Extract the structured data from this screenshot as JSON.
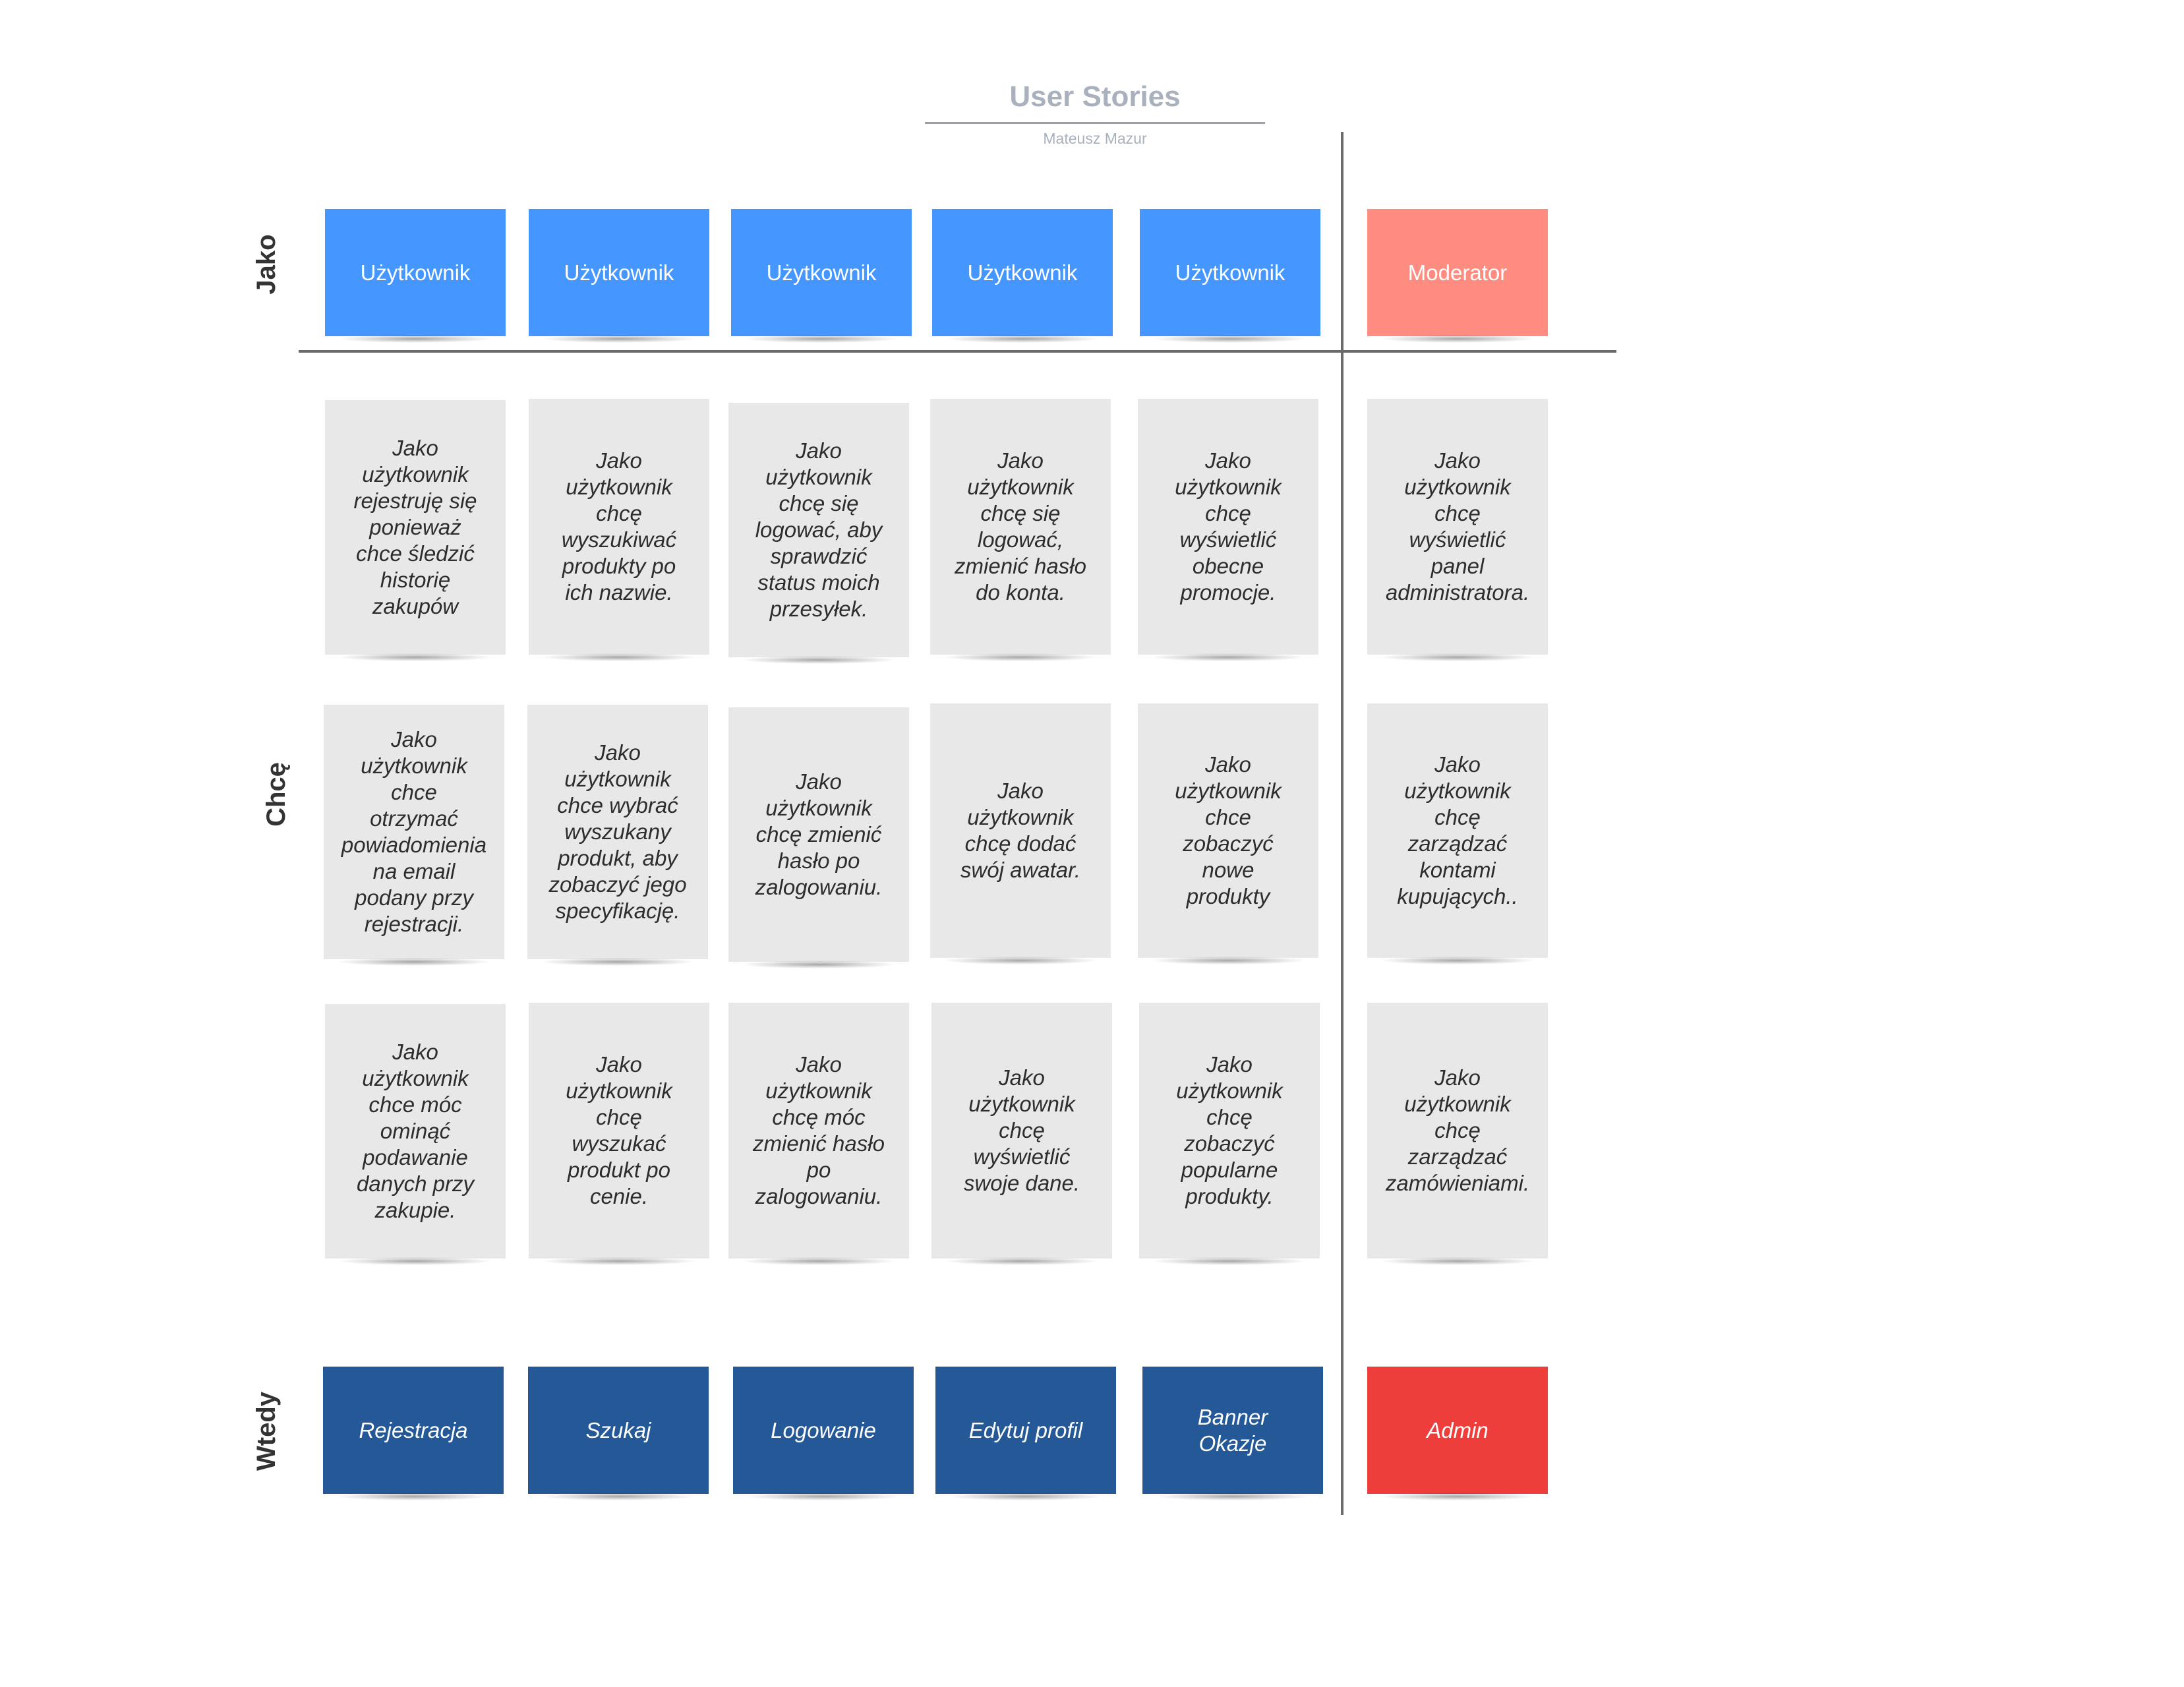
{
  "header": {
    "title": "User Stories",
    "author": "Mateusz Mazur"
  },
  "row_labels": {
    "as": "Jako",
    "want": "Chcę",
    "then": "Wtedy"
  },
  "roles": [
    "Użytkownik",
    "Użytkownik",
    "Użytkownik",
    "Użytkownik",
    "Użytkownik",
    "Moderator"
  ],
  "stories": {
    "row1": [
      "Jako\nużytkownik\nrejestruję się\nponieważ\nchce śledzić\nhistorię\nzakupów",
      "Jako\nużytkownik\nchcę\nwyszukiwać\nprodukty po\nich nazwie.",
      "Jako\nużytkownik\nchcę się\nlogować, aby\nsprawdzić\nstatus moich\nprzesyłek.",
      "Jako\nużytkownik\nchcę się\nlogować,\nzmienić hasło\ndo konta.",
      "Jako\nużytkownik\nchcę\nwyświetlić\nobecne\npromocje.",
      "Jako\nużytkownik\nchcę\nwyświetlić\npanel\nadministratora."
    ],
    "row2": [
      "Jako\nużytkownik\nchce\notrzymać\npowiadomienia\nna email\npodany przy\nrejestracji.",
      "Jako\nużytkownik\nchce wybrać\nwyszukany\nprodukt, aby\nzobaczyć jego\nspecyfikację.",
      "Jako\nużytkownik\nchcę zmienić\nhasło po\nzalogowaniu.",
      "Jako\nużytkownik\nchcę dodać\nswój awatar.",
      "Jako\nużytkownik\nchce\nzobaczyć\nnowe\nprodukty",
      "Jako\nużytkownik\nchcę\nzarządzać\nkontami\nkupujących.."
    ],
    "row3": [
      "Jako\nużytkownik\nchce móc\nominąć\npodawanie\ndanych przy\nzakupie.",
      "Jako\nużytkownik\nchcę\nwyszukać\nprodukt po\ncenie.",
      "Jako\nużytkownik\nchcę móc\nzmienić hasło\npo\nzalogowaniu.",
      "Jako\nużytkownik\nchcę\nwyświetlić\nswoje dane.",
      "Jako\nużytkownik\nchcę\nzobaczyć\npopularne\nprodukty.",
      "Jako\nużytkownik\nchcę\nzarządzać\nzamówieniami."
    ]
  },
  "features": [
    "Rejestracja",
    "Szukaj",
    "Logowanie",
    "Edytuj profil",
    "Banner\nOkazje",
    "Admin"
  ],
  "colors": {
    "user_role": "#4597ff",
    "moderator_role": "#ff8c80",
    "story_card": "#e8e8e8",
    "user_feature": "#245896",
    "admin_feature": "#ed3e3b"
  }
}
